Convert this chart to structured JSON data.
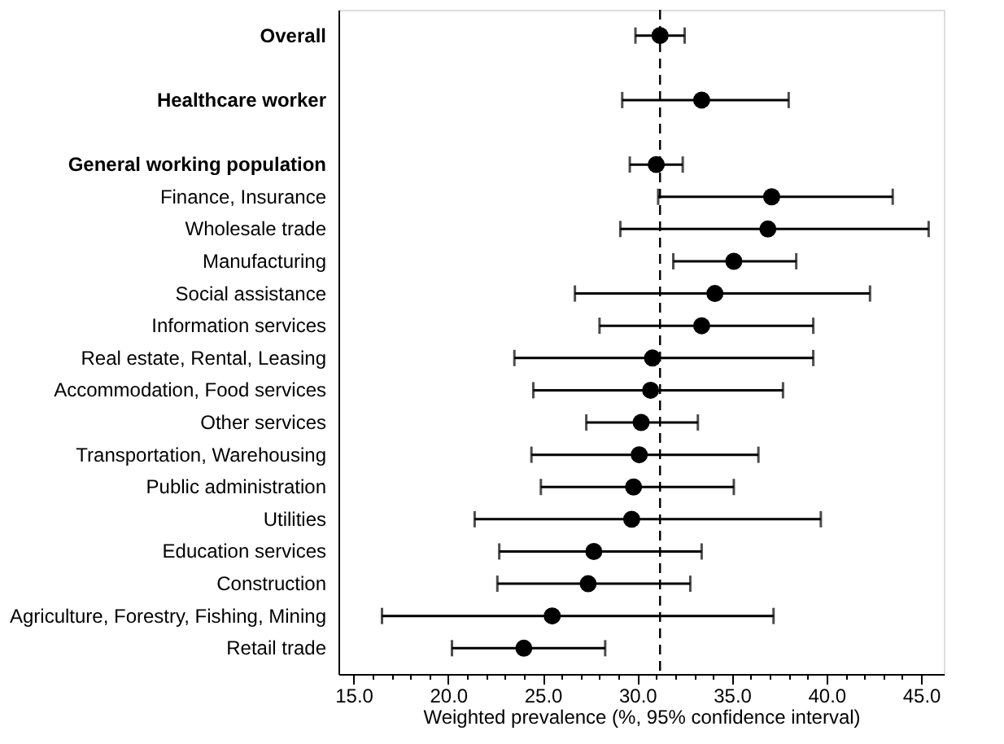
{
  "chart_data": {
    "type": "scatter",
    "marker": "circle",
    "grid": false,
    "xlabel": "Weighted prevalence (%, 95% confidence interval)",
    "categories": [
      "Overall",
      null,
      "Healthcare worker",
      null,
      "General working population",
      "Finance, Insurance",
      "Wholesale trade",
      "Manufacturing",
      "Social assistance",
      "Information services",
      "Real estate, Rental, Leasing",
      "Accommodation, Food services",
      "Other services",
      "Transportation, Warehousing",
      "Public administration",
      "Utilities",
      "Education services",
      "Construction",
      "Agriculture, Forestry, Fishing, Mining",
      "Retail trade"
    ],
    "series": [
      {
        "color": "#000000",
        "values": [
          31.2,
          null,
          33.4,
          null,
          31.0,
          37.1,
          36.9,
          35.1,
          34.1,
          33.4,
          30.8,
          30.7,
          30.2,
          30.1,
          29.8,
          29.7,
          27.7,
          27.4,
          25.5,
          24.0
        ],
        "errors": [
          [
            29.9,
            32.5
          ],
          null,
          [
            29.2,
            38.0
          ],
          null,
          [
            29.6,
            32.4
          ],
          [
            31.1,
            43.5
          ],
          [
            29.1,
            45.4
          ],
          [
            31.9,
            38.4
          ],
          [
            26.7,
            42.3
          ],
          [
            28.0,
            39.3
          ],
          [
            23.5,
            39.3
          ],
          [
            24.5,
            37.7
          ],
          [
            27.3,
            33.2
          ],
          [
            24.4,
            36.4
          ],
          [
            24.9,
            35.1
          ],
          [
            21.4,
            39.7
          ],
          [
            22.7,
            33.4
          ],
          [
            22.6,
            32.8
          ],
          [
            16.5,
            37.2
          ],
          [
            20.2,
            28.3
          ]
        ]
      }
    ],
    "orientation": "horizontal",
    "xlim": [
      14.2,
      46.2
    ],
    "xticks": [
      {
        "value": 15,
        "label": "15.0"
      },
      {
        "value": 16,
        "label": null
      },
      {
        "value": 17,
        "label": null
      },
      {
        "value": 18,
        "label": null
      },
      {
        "value": 19,
        "label": null
      },
      {
        "value": 20,
        "label": "20.0"
      },
      {
        "value": 21,
        "label": null
      },
      {
        "value": 22,
        "label": null
      },
      {
        "value": 23,
        "label": null
      },
      {
        "value": 24,
        "label": null
      },
      {
        "value": 25,
        "label": "25.0"
      },
      {
        "value": 26,
        "label": null
      },
      {
        "value": 27,
        "label": null
      },
      {
        "value": 28,
        "label": null
      },
      {
        "value": 29,
        "label": null
      },
      {
        "value": 30,
        "label": "30.0"
      },
      {
        "value": 31,
        "label": null
      },
      {
        "value": 32,
        "label": null
      },
      {
        "value": 33,
        "label": null
      },
      {
        "value": 34,
        "label": null
      },
      {
        "value": 35,
        "label": "35.0"
      },
      {
        "value": 36,
        "label": null
      },
      {
        "value": 37,
        "label": null
      },
      {
        "value": 38,
        "label": null
      },
      {
        "value": 39,
        "label": null
      },
      {
        "value": 40,
        "label": "40.0"
      },
      {
        "value": 41,
        "label": null
      },
      {
        "value": 42,
        "label": null
      },
      {
        "value": 43,
        "label": null
      },
      {
        "value": 44,
        "label": null
      },
      {
        "value": 45,
        "label": "45.0"
      }
    ],
    "ref_lines": [
      {
        "axis": "x",
        "value": 31.2,
        "color": "#000000",
        "line_style": "dashed"
      }
    ]
  }
}
